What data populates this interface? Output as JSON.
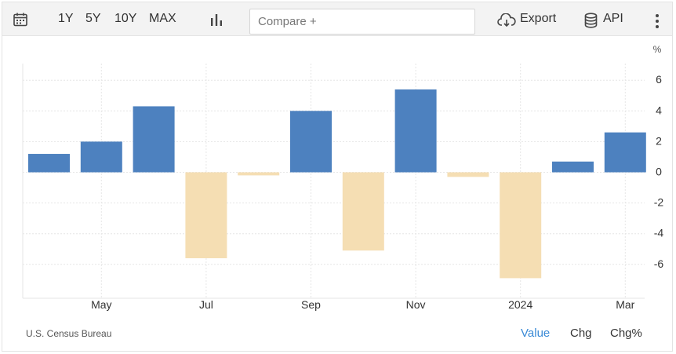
{
  "toolbar": {
    "ranges": [
      "1Y",
      "5Y",
      "10Y",
      "MAX"
    ],
    "compare_placeholder": "Compare +",
    "export_label": "Export",
    "api_label": "API",
    "icons": [
      "calendar-icon",
      "bar-chart-icon",
      "cloud-download-icon",
      "database-icon",
      "more-vertical-icon"
    ]
  },
  "footer": {
    "source": "U.S. Census Bureau",
    "modes": [
      "Value",
      "Chg",
      "Chg%"
    ],
    "active_mode": "Value"
  },
  "colors": {
    "positive": "#4d81bf",
    "negative": "#f5deb3",
    "active_mode": "#3a8ad6"
  },
  "chart_data": {
    "type": "bar",
    "unit_label": "%",
    "x": [
      "2023-04",
      "2023-05",
      "2023-06",
      "2023-07",
      "2023-08",
      "2023-09",
      "2023-10",
      "2023-11",
      "2023-12",
      "2024-01",
      "2024-02",
      "2024-03"
    ],
    "values": [
      1.2,
      2.0,
      4.3,
      -5.6,
      -0.2,
      4.0,
      -5.1,
      5.4,
      -0.3,
      -6.9,
      0.7,
      2.6
    ],
    "x_tick_labels": [
      "May",
      "Jul",
      "Sep",
      "Nov",
      "2024",
      "Mar"
    ],
    "x_tick_positions": [
      "2023-05",
      "2023-07",
      "2023-09",
      "2023-11",
      "2024-01",
      "2024-03"
    ],
    "y_ticks": [
      6,
      4,
      2,
      0,
      -2,
      -4,
      -6
    ],
    "ylim": [
      -8,
      7
    ],
    "grid": true,
    "y_axis_side": "right"
  }
}
